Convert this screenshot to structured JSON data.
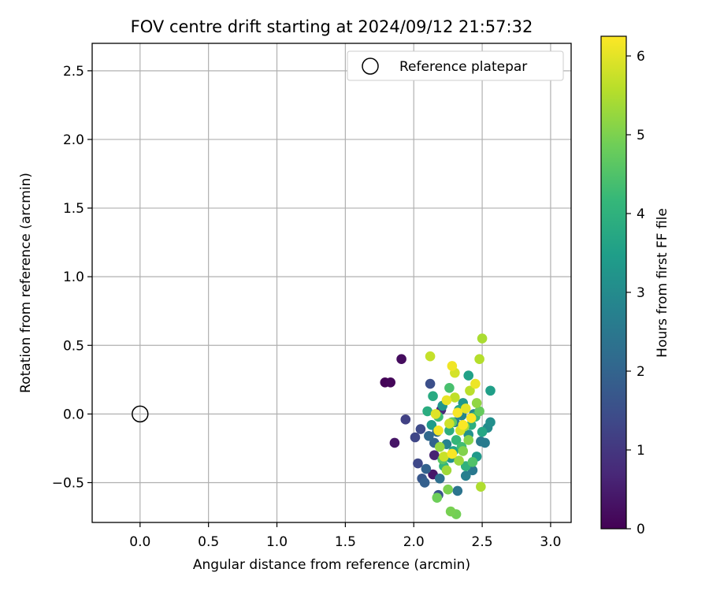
{
  "chart_data": {
    "type": "scatter",
    "title": "FOV centre drift starting at 2024/09/12 21:57:32",
    "xlabel": "Angular distance from reference (arcmin)",
    "ylabel": "Rotation from reference (arcmin)",
    "xlim": [
      -0.35,
      3.15
    ],
    "ylim": [
      -0.79,
      2.7
    ],
    "xticks": [
      0.0,
      0.5,
      1.0,
      1.5,
      2.0,
      2.5,
      3.0
    ],
    "xtick_labels": [
      "0.0",
      "0.5",
      "1.0",
      "1.5",
      "2.0",
      "2.5",
      "3.0"
    ],
    "yticks": [
      -0.5,
      0.0,
      0.5,
      1.0,
      1.5,
      2.0,
      2.5
    ],
    "ytick_labels": [
      "−0.5",
      "0.0",
      "0.5",
      "1.0",
      "1.5",
      "2.0",
      "2.5"
    ],
    "grid": true,
    "legend": {
      "position": "top-right",
      "entries": [
        {
          "label": "Reference platepar",
          "marker": "open-circle"
        }
      ]
    },
    "reference_point": {
      "x": 0.0,
      "y": 0.0
    },
    "colormap": "viridis",
    "colorbar": {
      "label": "Hours from first FF file",
      "range": [
        0,
        6.25
      ],
      "ticks": [
        0,
        1,
        2,
        3,
        4,
        5,
        6
      ],
      "tick_labels": [
        "0",
        "1",
        "2",
        "3",
        "4",
        "5",
        "6"
      ]
    },
    "points": [
      {
        "x": 1.79,
        "y": 0.23,
        "c": 0.05
      },
      {
        "x": 1.83,
        "y": 0.23,
        "c": 0.1
      },
      {
        "x": 1.91,
        "y": 0.4,
        "c": 0.2
      },
      {
        "x": 1.86,
        "y": -0.21,
        "c": 0.35
      },
      {
        "x": 2.14,
        "y": -0.44,
        "c": 0.4
      },
      {
        "x": 2.15,
        "y": -0.3,
        "c": 0.6
      },
      {
        "x": 2.2,
        "y": 0.03,
        "c": 0.7
      },
      {
        "x": 1.94,
        "y": -0.04,
        "c": 1.2
      },
      {
        "x": 2.01,
        "y": -0.17,
        "c": 1.3
      },
      {
        "x": 2.03,
        "y": -0.36,
        "c": 1.35
      },
      {
        "x": 2.05,
        "y": -0.11,
        "c": 1.4
      },
      {
        "x": 2.12,
        "y": 0.22,
        "c": 1.5
      },
      {
        "x": 2.18,
        "y": -0.59,
        "c": 1.6
      },
      {
        "x": 2.06,
        "y": -0.47,
        "c": 1.7
      },
      {
        "x": 2.08,
        "y": -0.5,
        "c": 1.9
      },
      {
        "x": 2.09,
        "y": -0.4,
        "c": 1.95
      },
      {
        "x": 2.15,
        "y": -0.21,
        "c": 2.0
      },
      {
        "x": 2.11,
        "y": -0.16,
        "c": 2.1
      },
      {
        "x": 2.17,
        "y": -0.13,
        "c": 2.2
      },
      {
        "x": 2.19,
        "y": -0.47,
        "c": 2.3
      },
      {
        "x": 2.32,
        "y": -0.56,
        "c": 2.4
      },
      {
        "x": 2.43,
        "y": -0.41,
        "c": 2.5
      },
      {
        "x": 2.49,
        "y": -0.2,
        "c": 2.55
      },
      {
        "x": 2.52,
        "y": -0.21,
        "c": 2.6
      },
      {
        "x": 2.38,
        "y": -0.45,
        "c": 2.7
      },
      {
        "x": 2.3,
        "y": -0.06,
        "c": 2.75
      },
      {
        "x": 2.24,
        "y": -0.22,
        "c": 2.8
      },
      {
        "x": 2.35,
        "y": -0.01,
        "c": 2.85
      },
      {
        "x": 2.44,
        "y": 0.0,
        "c": 2.9
      },
      {
        "x": 2.54,
        "y": -0.1,
        "c": 3.0
      },
      {
        "x": 2.56,
        "y": -0.06,
        "c": 3.1
      },
      {
        "x": 2.4,
        "y": -0.15,
        "c": 3.15
      },
      {
        "x": 2.27,
        "y": -0.32,
        "c": 3.2
      },
      {
        "x": 2.21,
        "y": 0.06,
        "c": 3.25
      },
      {
        "x": 2.36,
        "y": 0.08,
        "c": 3.3
      },
      {
        "x": 2.46,
        "y": -0.31,
        "c": 3.35
      },
      {
        "x": 2.13,
        "y": -0.08,
        "c": 3.4
      },
      {
        "x": 2.56,
        "y": 0.17,
        "c": 3.5
      },
      {
        "x": 2.4,
        "y": 0.28,
        "c": 3.55
      },
      {
        "x": 2.29,
        "y": -0.27,
        "c": 3.6
      },
      {
        "x": 2.33,
        "y": 0.03,
        "c": 3.65
      },
      {
        "x": 2.5,
        "y": -0.13,
        "c": 3.7
      },
      {
        "x": 2.14,
        "y": 0.13,
        "c": 3.8
      },
      {
        "x": 2.1,
        "y": 0.02,
        "c": 3.85
      },
      {
        "x": 2.26,
        "y": -0.12,
        "c": 3.9
      },
      {
        "x": 2.42,
        "y": -0.08,
        "c": 3.95
      },
      {
        "x": 2.38,
        "y": -0.38,
        "c": 4.0
      },
      {
        "x": 2.22,
        "y": -0.38,
        "c": 4.1
      },
      {
        "x": 2.31,
        "y": -0.19,
        "c": 4.15
      },
      {
        "x": 2.45,
        "y": -0.02,
        "c": 4.2
      },
      {
        "x": 2.18,
        "y": -0.02,
        "c": 4.25
      },
      {
        "x": 2.35,
        "y": -0.24,
        "c": 4.3
      },
      {
        "x": 2.26,
        "y": 0.19,
        "c": 4.4
      },
      {
        "x": 2.43,
        "y": -0.35,
        "c": 4.5
      },
      {
        "x": 2.21,
        "y": -0.33,
        "c": 4.6
      },
      {
        "x": 2.28,
        "y": -0.06,
        "c": 4.7
      },
      {
        "x": 2.48,
        "y": 0.02,
        "c": 4.75
      },
      {
        "x": 2.17,
        "y": -0.61,
        "c": 4.85
      },
      {
        "x": 2.31,
        "y": -0.73,
        "c": 4.9
      },
      {
        "x": 2.27,
        "y": -0.71,
        "c": 4.95
      },
      {
        "x": 2.25,
        "y": -0.55,
        "c": 5.0
      },
      {
        "x": 2.36,
        "y": -0.27,
        "c": 5.05
      },
      {
        "x": 2.4,
        "y": -0.19,
        "c": 5.1
      },
      {
        "x": 2.46,
        "y": 0.08,
        "c": 5.2
      },
      {
        "x": 2.19,
        "y": -0.24,
        "c": 5.25
      },
      {
        "x": 2.33,
        "y": -0.34,
        "c": 5.3
      },
      {
        "x": 2.24,
        "y": -0.41,
        "c": 5.35
      },
      {
        "x": 2.37,
        "y": -0.09,
        "c": 5.4
      },
      {
        "x": 2.5,
        "y": 0.55,
        "c": 5.45
      },
      {
        "x": 2.49,
        "y": -0.53,
        "c": 5.5
      },
      {
        "x": 2.48,
        "y": 0.4,
        "c": 5.55
      },
      {
        "x": 2.41,
        "y": 0.17,
        "c": 5.6
      },
      {
        "x": 2.3,
        "y": 0.12,
        "c": 5.65
      },
      {
        "x": 2.12,
        "y": 0.42,
        "c": 5.7
      },
      {
        "x": 2.22,
        "y": -0.31,
        "c": 5.75
      },
      {
        "x": 2.26,
        "y": -0.07,
        "c": 5.8
      },
      {
        "x": 2.3,
        "y": 0.3,
        "c": 5.85
      },
      {
        "x": 2.34,
        "y": -0.12,
        "c": 5.9
      },
      {
        "x": 2.16,
        "y": 0.0,
        "c": 5.95
      },
      {
        "x": 2.38,
        "y": 0.04,
        "c": 6.0
      },
      {
        "x": 2.24,
        "y": 0.1,
        "c": 6.05
      },
      {
        "x": 2.45,
        "y": 0.22,
        "c": 6.1
      },
      {
        "x": 2.28,
        "y": 0.35,
        "c": 6.12
      },
      {
        "x": 2.18,
        "y": -0.12,
        "c": 6.15
      },
      {
        "x": 2.32,
        "y": 0.01,
        "c": 6.18
      },
      {
        "x": 2.28,
        "y": -0.29,
        "c": 6.2
      },
      {
        "x": 2.36,
        "y": -0.08,
        "c": 6.22
      },
      {
        "x": 2.42,
        "y": -0.03,
        "c": 6.24
      }
    ]
  }
}
